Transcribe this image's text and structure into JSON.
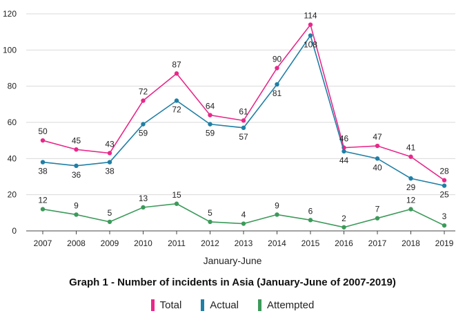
{
  "chart_data": {
    "type": "line",
    "title": "Graph 1 - Number of incidents in Asia (January-June of 2007-2019)",
    "xlabel": "January-June",
    "ylabel": "",
    "x": [
      "2007",
      "2008",
      "2009",
      "2010",
      "2011",
      "2012",
      "2013",
      "2014",
      "2015",
      "2016",
      "2017",
      "2018",
      "2019"
    ],
    "ylim": [
      0,
      120
    ],
    "yticks": [
      0,
      20,
      40,
      60,
      80,
      100,
      120
    ],
    "grid": true,
    "legend_position": "bottom",
    "series": [
      {
        "name": "Total",
        "color": "#e8288a",
        "values": [
          50,
          45,
          43,
          72,
          87,
          64,
          61,
          90,
          114,
          46,
          47,
          41,
          28
        ]
      },
      {
        "name": "Actual",
        "color": "#1f7fa6",
        "values": [
          38,
          36,
          38,
          59,
          72,
          59,
          57,
          81,
          108,
          44,
          40,
          29,
          25
        ]
      },
      {
        "name": "Attempted",
        "color": "#3c9a5a",
        "values": [
          12,
          9,
          5,
          13,
          15,
          5,
          4,
          9,
          6,
          2,
          7,
          12,
          3
        ]
      }
    ]
  }
}
